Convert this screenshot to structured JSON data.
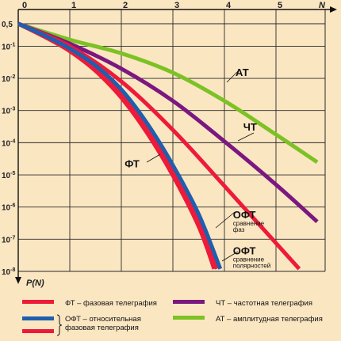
{
  "chart_data": {
    "type": "line",
    "xlabel": "N",
    "ylabel": "P(N)",
    "xlim": [
      0,
      6
    ],
    "xticks": [
      "0",
      "1",
      "2",
      "3",
      "4",
      "5"
    ],
    "yscale": "log",
    "ylim": [
      1e-08,
      0.5
    ],
    "yticks": [
      {
        "value": 0.5,
        "label": "0,5"
      },
      {
        "value": 0.1,
        "label": "10-1"
      },
      {
        "value": 0.01,
        "label": "10-2"
      },
      {
        "value": 0.001,
        "label": "10-3"
      },
      {
        "value": 0.0001,
        "label": "10-4"
      },
      {
        "value": 1e-05,
        "label": "10-5"
      },
      {
        "value": 1e-06,
        "label": "10-6"
      },
      {
        "value": 1e-07,
        "label": "10-7"
      },
      {
        "value": 1e-08,
        "label": "10-8"
      }
    ],
    "grid": true,
    "series": [
      {
        "name": "АТ",
        "color": "#7cc225",
        "x": [
          0,
          1,
          2,
          3,
          4,
          5,
          5.8
        ],
        "y": [
          0.5,
          0.16,
          0.06,
          0.015,
          0.002,
          0.00018,
          2.5e-05
        ]
      },
      {
        "name": "ЧТ",
        "color": "#7a1880",
        "x": [
          0,
          1,
          2,
          3,
          4,
          5,
          5.8
        ],
        "y": [
          0.5,
          0.12,
          0.02,
          0.002,
          0.00011,
          5e-06,
          3.5e-07
        ]
      },
      {
        "name": "ФТ",
        "color": "#ee1a3a",
        "x": [
          0,
          0.5,
          1,
          1.5,
          2,
          2.5,
          3,
          3.5,
          3.8
        ],
        "y": [
          0.5,
          0.2,
          0.07,
          0.017,
          0.0025,
          0.0002,
          9.5e-06,
          2.5e-07,
          1.2e-08
        ]
      },
      {
        "name": "ОФТ сравнение фаз",
        "color": "#ee1a3a",
        "x": [
          0,
          0.5,
          1,
          1.5,
          2,
          2.5,
          3,
          3.5,
          3.85
        ],
        "y": [
          0.5,
          0.21,
          0.075,
          0.02,
          0.0032,
          0.00028,
          1.4e-05,
          4e-07,
          1.2e-08
        ]
      },
      {
        "name": "ОФТ сравнение полярностей",
        "color": "#1e5fae",
        "x": [
          0,
          0.5,
          1,
          1.5,
          2,
          2.5,
          3,
          3.5,
          3.92
        ],
        "y": [
          0.5,
          0.22,
          0.085,
          0.025,
          0.0045,
          0.0004,
          2e-05,
          6e-07,
          1.2e-08
        ]
      },
      {
        "name": "ФТ (правая)",
        "color": "#ee1a3a",
        "x": [
          0,
          1,
          2,
          3,
          4,
          5.45
        ],
        "y": [
          0.5,
          0.1,
          0.008,
          0.00025,
          4.5e-06,
          1.2e-08
        ]
      }
    ],
    "annotations": [
      {
        "text": "АТ",
        "x": 4.4,
        "y": 0.012
      },
      {
        "text": "ЧТ",
        "x": 4.55,
        "y": 0.00024
      },
      {
        "text": "ФТ",
        "x": 2.25,
        "y": 1.7e-05
      },
      {
        "text": "ОФТ",
        "x": 4.35,
        "y": 4.5e-07,
        "sub": [
          "сравнение",
          "фаз"
        ]
      },
      {
        "text": "ОФТ",
        "x": 4.35,
        "y": 3.4e-08,
        "sub": [
          "сравнение",
          "полярностей"
        ]
      }
    ],
    "legend": [
      {
        "color": "#ee1a3a",
        "text": "ФТ – фазовая телеграфия"
      },
      {
        "color": "#7a1880",
        "text": "ЧТ – частотная телеграфия"
      },
      {
        "colors": [
          "#1e5fae",
          "#ee1a3a"
        ],
        "text": [
          "ОФТ – относительная",
          "фазовая телеграфия"
        ]
      },
      {
        "color": "#7cc225",
        "text": "АТ – амплитудная телеграфия"
      }
    ]
  }
}
